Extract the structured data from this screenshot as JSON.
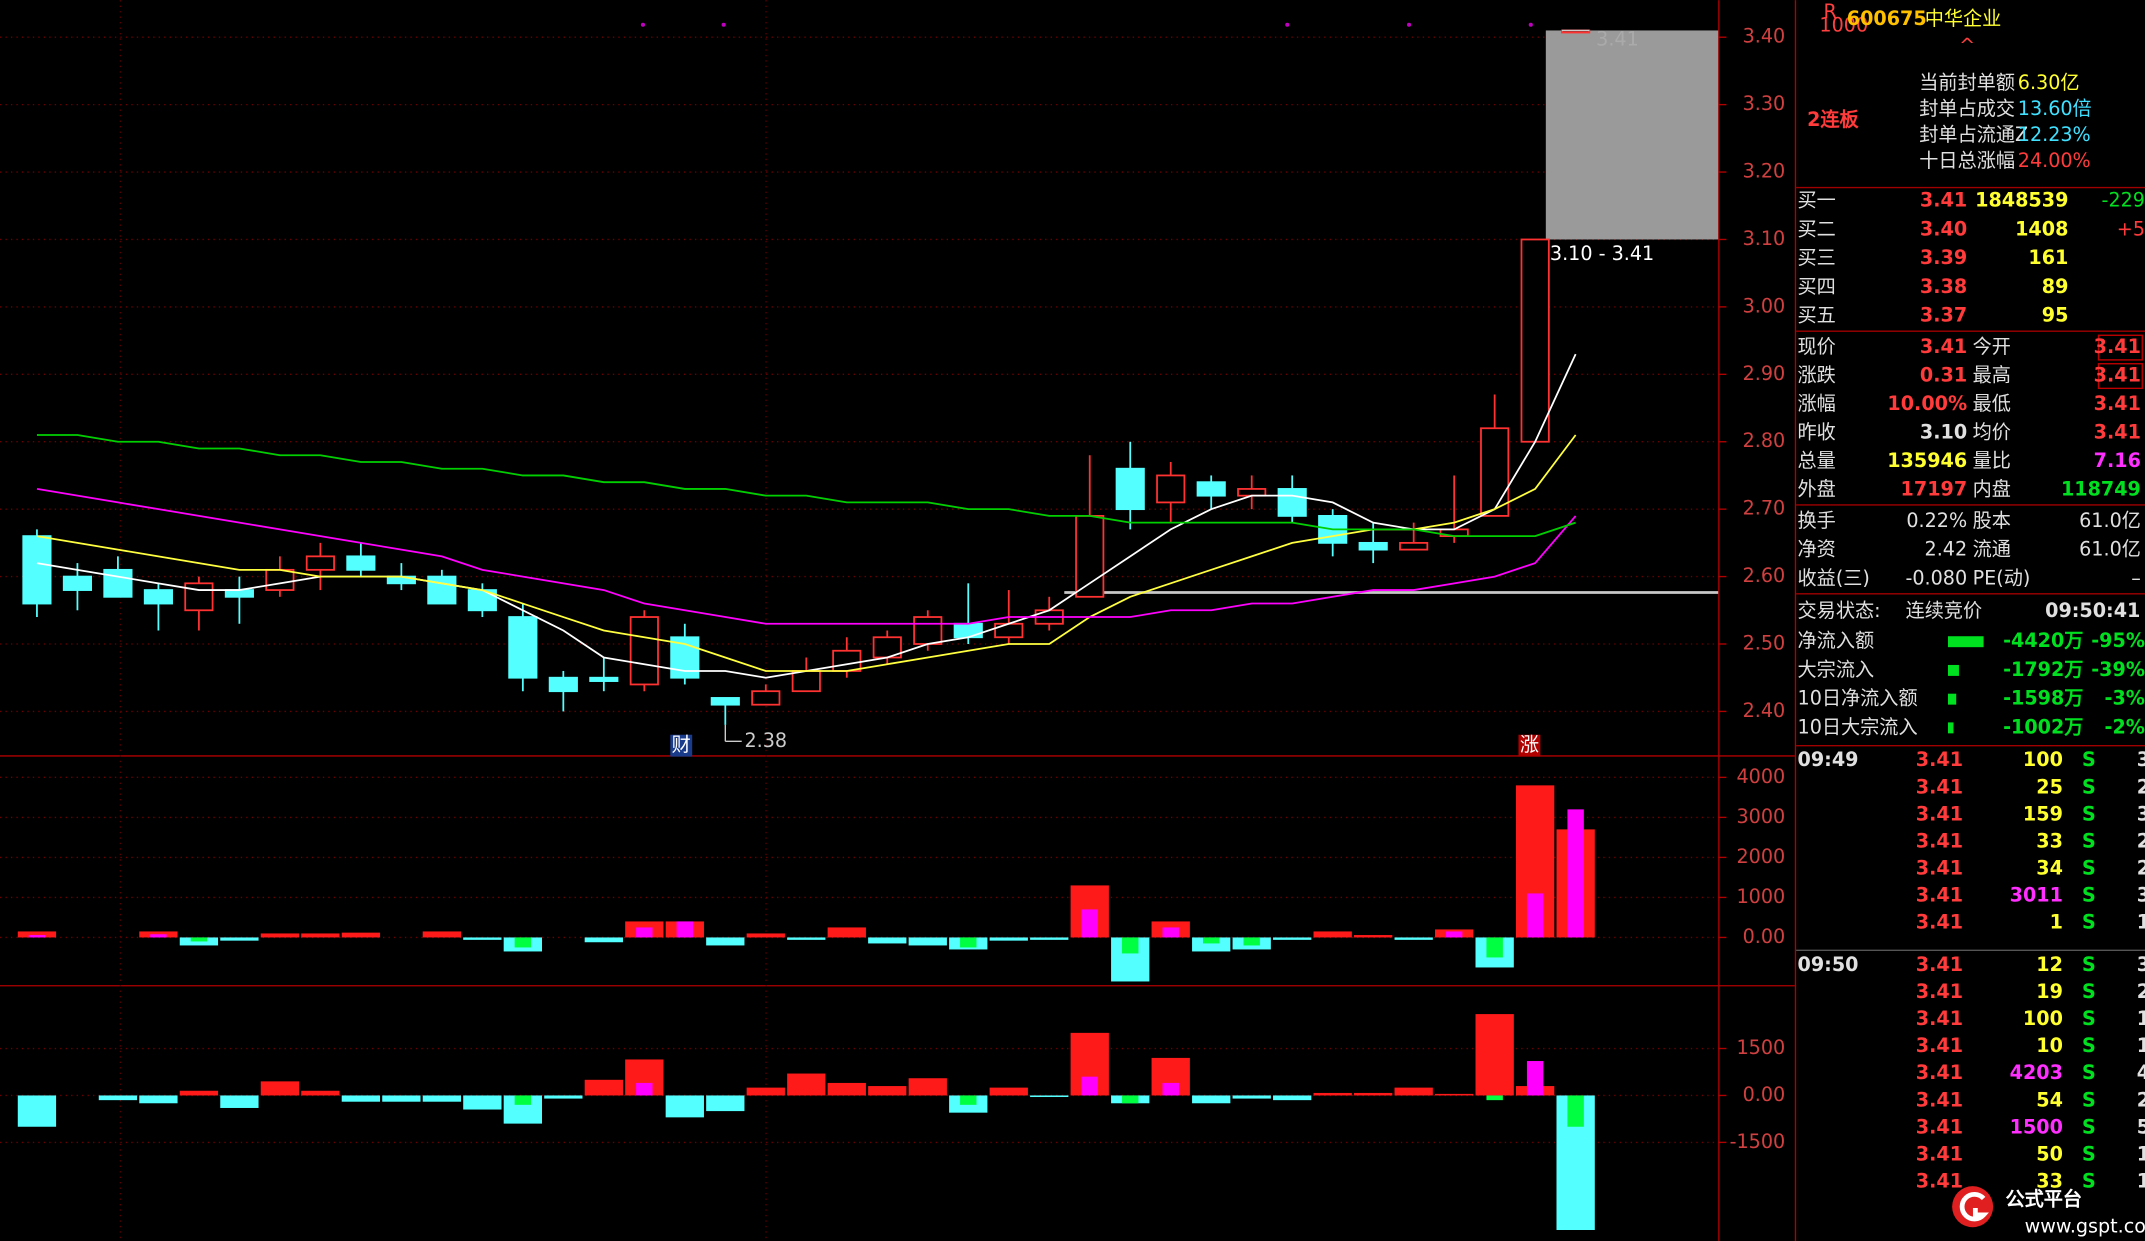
{
  "chart_data": [
    {
      "type": "candlestick",
      "open": [
        2.66,
        2.6,
        2.61,
        2.58,
        2.55,
        2.58,
        2.58,
        2.61,
        2.63,
        2.6,
        2.6,
        2.58,
        2.54,
        2.45,
        2.45,
        2.44,
        2.51,
        2.42,
        2.41,
        2.43,
        2.46,
        2.48,
        2.5,
        2.53,
        2.51,
        2.53,
        2.57,
        2.76,
        2.71,
        2.74,
        2.72,
        2.73,
        2.69,
        2.65,
        2.64,
        2.66,
        2.69,
        2.8,
        3.41
      ],
      "high": [
        2.67,
        2.62,
        2.63,
        2.59,
        2.6,
        2.6,
        2.63,
        2.65,
        2.65,
        2.62,
        2.61,
        2.59,
        2.56,
        2.46,
        2.48,
        2.55,
        2.53,
        2.42,
        2.44,
        2.48,
        2.51,
        2.52,
        2.55,
        2.59,
        2.58,
        2.57,
        2.78,
        2.8,
        2.77,
        2.75,
        2.75,
        2.75,
        2.7,
        2.68,
        2.68,
        2.75,
        2.87,
        3.1,
        3.41
      ],
      "low": [
        2.54,
        2.55,
        2.57,
        2.52,
        2.52,
        2.53,
        2.57,
        2.58,
        2.6,
        2.58,
        2.56,
        2.54,
        2.43,
        2.4,
        2.43,
        2.43,
        2.44,
        2.38,
        2.41,
        2.43,
        2.45,
        2.47,
        2.49,
        2.5,
        2.5,
        2.52,
        2.57,
        2.67,
        2.68,
        2.7,
        2.7,
        2.68,
        2.63,
        2.62,
        2.64,
        2.65,
        2.69,
        2.8,
        3.41
      ],
      "close": [
        2.56,
        2.58,
        2.57,
        2.56,
        2.59,
        2.57,
        2.61,
        2.63,
        2.61,
        2.59,
        2.56,
        2.55,
        2.45,
        2.43,
        2.445,
        2.54,
        2.45,
        2.41,
        2.43,
        2.46,
        2.49,
        2.51,
        2.54,
        2.51,
        2.53,
        2.55,
        2.69,
        2.7,
        2.75,
        2.72,
        2.73,
        2.69,
        2.65,
        2.64,
        2.65,
        2.67,
        2.82,
        3.1,
        3.41
      ],
      "up_color": "#ff3232",
      "down_color": "#54ffff",
      "series": [
        {
          "color": "#ffffff",
          "values": [
            2.62,
            2.61,
            2.6,
            2.59,
            2.58,
            2.58,
            2.59,
            2.6,
            2.6,
            2.6,
            2.59,
            2.58,
            2.55,
            2.52,
            2.48,
            2.47,
            2.46,
            2.46,
            2.45,
            2.46,
            2.47,
            2.48,
            2.5,
            2.51,
            2.53,
            2.55,
            2.59,
            2.63,
            2.67,
            2.7,
            2.72,
            2.72,
            2.71,
            2.68,
            2.67,
            2.67,
            2.7,
            2.8,
            2.93
          ]
        },
        {
          "color": "#ffff40",
          "values": [
            2.66,
            2.65,
            2.64,
            2.63,
            2.62,
            2.61,
            2.61,
            2.6,
            2.6,
            2.6,
            2.59,
            2.58,
            2.56,
            2.54,
            2.52,
            2.51,
            2.5,
            2.48,
            2.46,
            2.46,
            2.46,
            2.47,
            2.48,
            2.49,
            2.5,
            2.5,
            2.54,
            2.57,
            2.59,
            2.61,
            2.63,
            2.65,
            2.66,
            2.67,
            2.67,
            2.68,
            2.7,
            2.73,
            2.81
          ]
        },
        {
          "color": "#ff00ff",
          "values": [
            2.73,
            2.72,
            2.71,
            2.7,
            2.69,
            2.68,
            2.67,
            2.66,
            2.65,
            2.64,
            2.63,
            2.61,
            2.6,
            2.59,
            2.58,
            2.56,
            2.55,
            2.54,
            2.53,
            2.53,
            2.53,
            2.53,
            2.53,
            2.53,
            2.54,
            2.54,
            2.54,
            2.54,
            2.55,
            2.55,
            2.56,
            2.56,
            2.57,
            2.58,
            2.58,
            2.59,
            2.6,
            2.62,
            2.69
          ]
        },
        {
          "color": "#00d000",
          "values": [
            2.81,
            2.81,
            2.8,
            2.8,
            2.79,
            2.79,
            2.78,
            2.78,
            2.77,
            2.77,
            2.76,
            2.76,
            2.75,
            2.75,
            2.74,
            2.74,
            2.73,
            2.73,
            2.72,
            2.72,
            2.71,
            2.71,
            2.71,
            2.7,
            2.7,
            2.69,
            2.69,
            2.68,
            2.68,
            2.68,
            2.68,
            2.68,
            2.67,
            2.67,
            2.67,
            2.66,
            2.66,
            2.66,
            2.68
          ]
        }
      ],
      "ylim": [
        2.335,
        3.455
      ],
      "yticks": [
        {
          "value": 3.4,
          "label": "3.40"
        },
        {
          "value": 3.3,
          "label": "3.30"
        },
        {
          "value": 3.2,
          "label": "3.20"
        },
        {
          "value": 3.1,
          "label": "3.10"
        },
        {
          "value": 3.0,
          "label": "3.00"
        },
        {
          "value": 2.9,
          "label": "2.90"
        },
        {
          "value": 2.8,
          "label": "2.80"
        },
        {
          "value": 2.7,
          "label": "2.70"
        },
        {
          "value": 2.6,
          "label": "2.60"
        },
        {
          "value": 2.5,
          "label": "2.50"
        },
        {
          "value": 2.4,
          "label": "2.40"
        }
      ],
      "grid": true,
      "range_box": {
        "low": 3.1,
        "high": 3.41,
        "label": "3.10 - 3.41",
        "color": "#9a9a9a"
      },
      "high_label": 3.41,
      "low_label": 2.38,
      "markers": [
        "财",
        "涨"
      ]
    },
    {
      "type": "bar",
      "series": [
        {
          "up_color": "#ff1a1a",
          "down_color": "#54ffff",
          "values": [
            150,
            0,
            0,
            150,
            -200,
            -80,
            100,
            100,
            120,
            0,
            150,
            -60,
            -350,
            0,
            -120,
            400,
            400,
            -200,
            100,
            -60,
            250,
            -150,
            -200,
            -300,
            -80,
            -60,
            1300,
            -1100,
            400,
            -350,
            -300,
            -60,
            150,
            60,
            -60,
            200,
            -750,
            3800,
            2700
          ]
        },
        {
          "up_color": "#ff00ff",
          "down_color": "#00ff40",
          "values": [
            60,
            0,
            0,
            80,
            -100,
            0,
            0,
            0,
            0,
            0,
            0,
            0,
            -250,
            0,
            0,
            250,
            400,
            0,
            0,
            0,
            0,
            0,
            0,
            -250,
            0,
            0,
            700,
            -400,
            250,
            -150,
            -200,
            0,
            0,
            0,
            0,
            150,
            -500,
            1100,
            3200
          ]
        }
      ],
      "ylim": [
        -1190,
        4450
      ],
      "yticks": [
        4000,
        3000,
        2000,
        1000,
        {
          "value": 0,
          "label": "0.00"
        }
      ]
    },
    {
      "type": "bar",
      "series": [
        {
          "up_color": "#ff1a1a",
          "down_color": "#54ffff",
          "values": [
            -1000,
            0,
            -150,
            -250,
            150,
            -400,
            450,
            150,
            -200,
            -200,
            -200,
            -450,
            -900,
            -100,
            500,
            1150,
            -700,
            -500,
            250,
            700,
            400,
            300,
            550,
            -550,
            250,
            -50,
            2000,
            -250,
            1200,
            -250,
            -100,
            -150,
            80,
            80,
            250,
            50,
            2600,
            300,
            -4300
          ]
        },
        {
          "up_color": "#ff00ff",
          "down_color": "#00ff40",
          "values": [
            0,
            0,
            0,
            0,
            0,
            0,
            0,
            0,
            0,
            0,
            0,
            0,
            -300,
            0,
            0,
            400,
            0,
            0,
            0,
            0,
            0,
            0,
            0,
            -300,
            0,
            0,
            600,
            -250,
            400,
            0,
            0,
            0,
            0,
            0,
            0,
            0,
            -150,
            1100,
            -1000
          ]
        }
      ],
      "ylim": [
        -4560,
        3440
      ],
      "yticks": [
        1500,
        {
          "value": 0,
          "label": "0.00"
        },
        -1500
      ]
    }
  ],
  "quote": {
    "code": "600675",
    "name": "中华企业",
    "badge_top": "R",
    "badge_bottom": "1000",
    "streak": "2连板",
    "seal": [
      [
        "当前封单额",
        "6.30亿"
      ],
      [
        "封单占成交",
        "13.60倍"
      ],
      [
        "封单占流通Z",
        "12.23%"
      ],
      [
        "十日总涨幅",
        "24.00%"
      ]
    ],
    "book": [
      [
        "买一",
        "3.41",
        "1848539",
        "-229"
      ],
      [
        "买二",
        "3.40",
        "1408",
        "+5"
      ],
      [
        "买三",
        "3.39",
        "161"
      ],
      [
        "买四",
        "3.38",
        "89"
      ],
      [
        "买五",
        "3.37",
        "95"
      ]
    ],
    "stats": [
      [
        "现价",
        "3.41",
        "今开",
        "3.41"
      ],
      [
        "涨跌",
        "0.31",
        "最高",
        "3.41"
      ],
      [
        "涨幅",
        "10.00%",
        "最低",
        "3.41"
      ],
      [
        "昨收",
        "3.10",
        "均价",
        "3.41"
      ],
      [
        "总量",
        "135946",
        "量比",
        "7.16"
      ],
      [
        "外盘",
        "17197",
        "内盘",
        "118749"
      ]
    ],
    "fundamentals": [
      [
        "换手",
        "0.22%",
        "股本",
        "61.0亿"
      ],
      [
        "净资",
        "2.42",
        "流通",
        "61.0亿"
      ],
      [
        "收益(三)",
        "-0.080",
        "PE(动)",
        "–"
      ]
    ],
    "status": [
      "交易状态:",
      "连续竞价",
      "09:50:41"
    ],
    "flows": [
      [
        "净流入额",
        "-4420万",
        "-95%"
      ],
      [
        "大宗流入",
        "-1792万",
        "-39%"
      ],
      [
        "10日净流入额",
        "-1598万",
        "-3%"
      ],
      [
        "10日大宗流入",
        "-1002万",
        "-2%"
      ]
    ],
    "ticks": [
      {
        "time": "09:49",
        "rows": [
          [
            "3.41",
            "100",
            "S",
            "3"
          ],
          [
            "3.41",
            "25",
            "S",
            "2"
          ],
          [
            "3.41",
            "159",
            "S",
            "3"
          ],
          [
            "3.41",
            "33",
            "S",
            "2"
          ],
          [
            "3.41",
            "34",
            "S",
            "2"
          ],
          [
            "3.41",
            "3011",
            "S",
            "3"
          ],
          [
            "3.41",
            "1",
            "S",
            "1"
          ]
        ]
      },
      {
        "time": "09:50",
        "rows": [
          [
            "3.41",
            "12",
            "S",
            "3"
          ],
          [
            "3.41",
            "19",
            "S",
            "2"
          ],
          [
            "3.41",
            "100",
            "S",
            "1"
          ],
          [
            "3.41",
            "10",
            "S",
            "1"
          ],
          [
            "3.41",
            "4203",
            "S",
            "4"
          ],
          [
            "3.41",
            "54",
            "S",
            "2"
          ],
          [
            "3.41",
            "1500",
            "S",
            "5"
          ],
          [
            "3.41",
            "50",
            "S",
            "1"
          ],
          [
            "3.41",
            "33",
            "S",
            "1"
          ]
        ]
      }
    ],
    "logo": {
      "name": "公式平台",
      "url": "www.gspt.com"
    }
  }
}
